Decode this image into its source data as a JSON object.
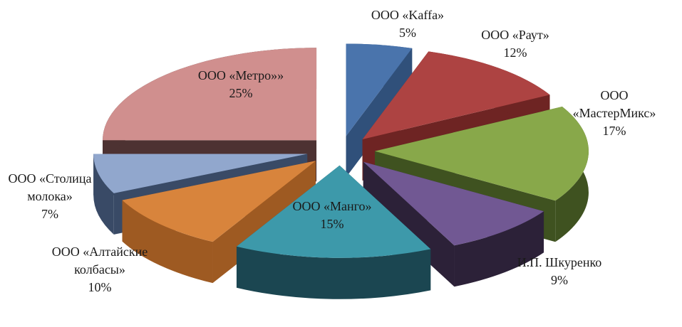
{
  "chart_data": {
    "type": "pie",
    "three_d": true,
    "exploded": true,
    "title": "",
    "legend": "none",
    "slices": [
      {
        "label_lines": [
          "ООО «Kaffa»"
        ],
        "label": "ООО «Kaffa»",
        "value": 5,
        "pct_text": "5%",
        "color": "#4a74ac",
        "side": "#30507a"
      },
      {
        "label_lines": [
          "ООО «Раут»"
        ],
        "label": "ООО «Раут»",
        "value": 12,
        "pct_text": "12%",
        "color": "#ad4342",
        "side": "#6e2423"
      },
      {
        "label_lines": [
          "ООО",
          "«МастерМикс»"
        ],
        "label": "ООО «МастерМикс»",
        "value": 17,
        "pct_text": "17%",
        "color": "#88a84a",
        "side": "#3f5220"
      },
      {
        "label_lines": [
          "И.П.  Шкуренко"
        ],
        "label": "И.П.  Шкуренко",
        "value": 9,
        "pct_text": "9%",
        "color": "#715893",
        "side": "#2c2138"
      },
      {
        "label_lines": [
          "ООО «Манго»"
        ],
        "label": "ООО «Манго»",
        "value": 15,
        "pct_text": "15%",
        "color": "#3d99aa",
        "side": "#1b4651"
      },
      {
        "label_lines": [
          "ООО «Алтайские",
          "колбасы»"
        ],
        "label": "ООО «Алтайские колбасы»",
        "value": 10,
        "pct_text": "10%",
        "color": "#d8843c",
        "side": "#9e5a22"
      },
      {
        "label_lines": [
          "ООО «Столица",
          "молока»"
        ],
        "label": "ООО «Столица молока»",
        "value": 7,
        "pct_text": "7%",
        "color": "#91a7cd",
        "side": "#394a66"
      },
      {
        "label_lines": [
          "ООО «Метро»»"
        ],
        "label": "ООО «Метро»»",
        "value": 25,
        "pct_text": "25%",
        "color": "#d08f8e",
        "side": "#4d3232"
      }
    ]
  }
}
